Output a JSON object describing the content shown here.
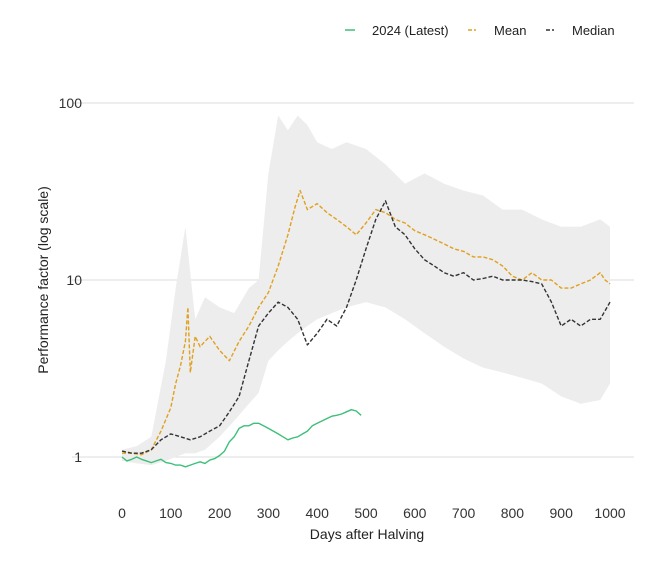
{
  "chart_data": {
    "type": "line",
    "xlabel": "Days after Halving",
    "ylabel": "Performance factor (log scale)",
    "xlim": [
      0,
      1000
    ],
    "ylim": [
      0.8,
      100
    ],
    "yscale": "log",
    "grid": "horizontal",
    "legend_position": "top-right",
    "x_ticks": [
      0,
      100,
      200,
      300,
      400,
      500,
      600,
      700,
      800,
      900,
      1000
    ],
    "y_ticks": [
      {
        "value": 1,
        "label": "1"
      },
      {
        "value": 10,
        "label": "10"
      },
      {
        "value": 100,
        "label": "100"
      }
    ],
    "colors": {
      "latest": "#3dbf7a",
      "mean": "#e0a020",
      "median": "#333333",
      "band": "#ededed",
      "grid": "#dddddd"
    },
    "range_band": {
      "x": [
        0,
        30,
        60,
        90,
        110,
        130,
        150,
        170,
        200,
        230,
        260,
        280,
        300,
        320,
        340,
        360,
        380,
        400,
        430,
        460,
        500,
        540,
        580,
        620,
        660,
        700,
        740,
        780,
        820,
        860,
        900,
        940,
        980,
        1000
      ],
      "high": [
        1.1,
        1.15,
        1.3,
        3.5,
        9,
        20,
        6,
        8,
        7,
        6.5,
        9,
        10,
        40,
        85,
        70,
        85,
        75,
        60,
        55,
        60,
        55,
        45,
        35,
        40,
        35,
        32,
        30,
        25,
        25,
        22,
        20,
        20,
        22,
        20
      ],
      "low": [
        0.95,
        0.92,
        0.9,
        0.95,
        1.0,
        1.05,
        1.05,
        1.1,
        1.3,
        1.6,
        2.0,
        2.3,
        3.5,
        4.0,
        4.5,
        5.0,
        5.5,
        6.0,
        6.5,
        7.0,
        7.5,
        7.0,
        6.0,
        5.0,
        4.2,
        3.6,
        3.2,
        3.0,
        2.8,
        2.6,
        2.2,
        2.0,
        2.1,
        2.6
      ]
    },
    "series": [
      {
        "name": "2024 (Latest)",
        "key": "latest",
        "style": "solid",
        "x": [
          0,
          10,
          20,
          30,
          40,
          50,
          60,
          70,
          80,
          90,
          100,
          110,
          120,
          130,
          140,
          150,
          160,
          170,
          180,
          190,
          200,
          210,
          220,
          230,
          240,
          250,
          260,
          270,
          280,
          290,
          300,
          310,
          320,
          330,
          340,
          350,
          360,
          370,
          380,
          390,
          400,
          410,
          420,
          430,
          440,
          450,
          460,
          470,
          480,
          490
        ],
        "y": [
          1.0,
          0.95,
          0.97,
          1.0,
          0.97,
          0.95,
          0.93,
          0.95,
          0.97,
          0.93,
          0.92,
          0.9,
          0.9,
          0.88,
          0.9,
          0.92,
          0.94,
          0.92,
          0.96,
          0.98,
          1.02,
          1.08,
          1.22,
          1.3,
          1.45,
          1.5,
          1.5,
          1.55,
          1.55,
          1.5,
          1.45,
          1.4,
          1.35,
          1.3,
          1.25,
          1.28,
          1.3,
          1.35,
          1.4,
          1.5,
          1.55,
          1.6,
          1.65,
          1.7,
          1.72,
          1.75,
          1.8,
          1.85,
          1.82,
          1.72
        ]
      },
      {
        "name": "Mean",
        "key": "mean",
        "style": "dashed",
        "x": [
          0,
          20,
          40,
          60,
          80,
          100,
          110,
          120,
          130,
          135,
          140,
          150,
          160,
          170,
          180,
          200,
          220,
          240,
          260,
          280,
          300,
          320,
          340,
          355,
          365,
          380,
          400,
          420,
          440,
          460,
          480,
          500,
          520,
          540,
          560,
          580,
          600,
          620,
          640,
          660,
          680,
          700,
          720,
          740,
          760,
          780,
          800,
          820,
          840,
          860,
          880,
          900,
          920,
          940,
          960,
          980,
          990,
          1000
        ],
        "y": [
          1.05,
          1.05,
          1.03,
          1.1,
          1.4,
          1.9,
          2.6,
          3.3,
          4.5,
          7.0,
          3.0,
          4.8,
          4.2,
          4.5,
          4.8,
          4.0,
          3.5,
          4.5,
          5.5,
          7.0,
          8.5,
          12,
          18,
          26,
          32,
          25,
          27,
          24,
          22,
          20,
          18,
          21,
          25,
          24,
          22,
          21,
          19,
          18,
          17,
          16,
          15,
          14.5,
          13.5,
          13.5,
          13,
          12,
          10.5,
          10,
          11,
          10,
          10,
          9,
          9,
          9.5,
          10,
          11,
          10,
          9.5
        ]
      },
      {
        "name": "Median",
        "key": "median",
        "style": "dashed",
        "x": [
          0,
          20,
          40,
          60,
          80,
          100,
          120,
          140,
          160,
          180,
          200,
          220,
          240,
          260,
          280,
          300,
          320,
          340,
          360,
          380,
          400,
          420,
          440,
          460,
          480,
          500,
          520,
          540,
          560,
          580,
          600,
          620,
          640,
          660,
          680,
          700,
          720,
          740,
          760,
          780,
          800,
          820,
          840,
          860,
          880,
          900,
          920,
          940,
          960,
          980,
          1000
        ],
        "y": [
          1.08,
          1.05,
          1.05,
          1.1,
          1.25,
          1.35,
          1.3,
          1.25,
          1.3,
          1.4,
          1.5,
          1.8,
          2.2,
          3.5,
          5.5,
          6.5,
          7.5,
          7.0,
          6.0,
          4.3,
          5.0,
          6.0,
          5.5,
          7.0,
          10,
          15,
          22,
          28,
          20,
          18,
          15,
          13,
          12,
          11,
          10.5,
          11,
          10,
          10.2,
          10.5,
          10,
          10,
          10,
          9.8,
          9.5,
          7.5,
          5.5,
          6.0,
          5.5,
          6.0,
          6.0,
          7.5
        ]
      }
    ]
  }
}
